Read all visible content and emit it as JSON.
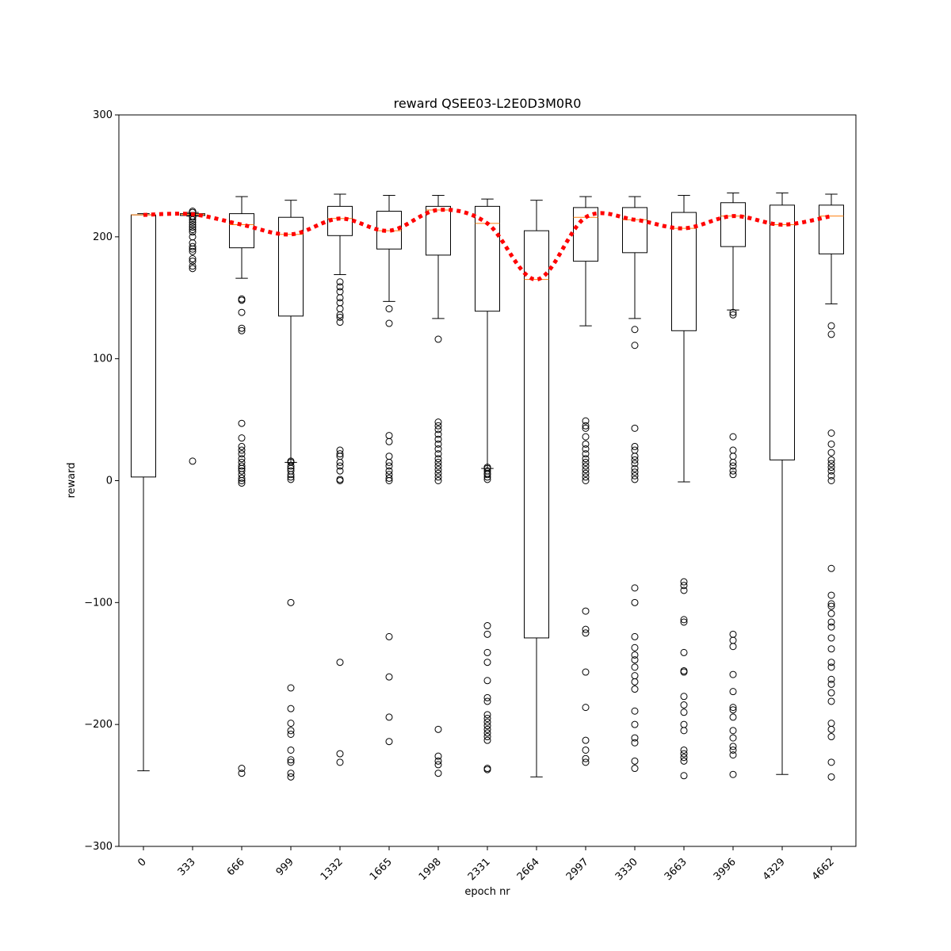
{
  "chart_data": {
    "type": "box",
    "title": "reward QSEE03-L2E0D3M0R0",
    "xlabel": "epoch nr",
    "ylabel": "reward",
    "ylim": [
      -300,
      300
    ],
    "yticks": [
      -300,
      -200,
      -100,
      0,
      100,
      200,
      300
    ],
    "categories": [
      "0",
      "333",
      "666",
      "999",
      "1332",
      "1665",
      "1998",
      "2331",
      "2664",
      "2997",
      "3330",
      "3663",
      "3996",
      "4329",
      "4662"
    ],
    "boxes": [
      {
        "q1": 3,
        "median": 218,
        "q3": 218,
        "whisker_low": -238,
        "whisker_high": 219,
        "outliers": []
      },
      {
        "q1": 217.5,
        "median": 218.5,
        "q3": 219,
        "whisker_low": 217,
        "whisker_high": 220,
        "outliers": [
          221,
          220,
          217,
          216,
          214,
          212,
          210,
          208,
          206,
          204,
          200,
          195,
          192,
          190,
          188,
          182,
          180,
          176,
          174,
          16
        ]
      },
      {
        "q1": 191,
        "median": 210,
        "q3": 219,
        "whisker_low": 166,
        "whisker_high": 233,
        "outliers": [
          149,
          148,
          138,
          125,
          123,
          47,
          35,
          28,
          25,
          22,
          18,
          15,
          12,
          10,
          8,
          5,
          2,
          0,
          -2,
          -236,
          -240
        ]
      },
      {
        "q1": 135,
        "median": 202,
        "q3": 216,
        "whisker_low": 15,
        "whisker_high": 230,
        "outliers": [
          16,
          15,
          12,
          10,
          8,
          5,
          3,
          1,
          -100,
          -170,
          -187,
          -199,
          -205,
          -208,
          -221,
          -229,
          -231,
          -240,
          -243
        ]
      },
      {
        "q1": 201,
        "median": 215,
        "q3": 225,
        "whisker_low": 169,
        "whisker_high": 235,
        "outliers": [
          163,
          159,
          155,
          150,
          146,
          141,
          136,
          134,
          130,
          25,
          22,
          20,
          15,
          12,
          8,
          1,
          0,
          -149,
          -224,
          -231
        ]
      },
      {
        "q1": 190,
        "median": 205,
        "q3": 221,
        "whisker_low": 147,
        "whisker_high": 234,
        "outliers": [
          141,
          129,
          37,
          32,
          20,
          15,
          12,
          8,
          5,
          2,
          0,
          -128,
          -161,
          -194,
          -214
        ]
      },
      {
        "q1": 185,
        "median": 222,
        "q3": 225,
        "whisker_low": 133,
        "whisker_high": 234,
        "outliers": [
          116,
          48,
          45,
          42,
          38,
          34,
          30,
          26,
          22,
          18,
          15,
          12,
          9,
          6,
          3,
          0,
          -204,
          -226,
          -230,
          -233,
          -240
        ]
      },
      {
        "q1": 139,
        "median": 211,
        "q3": 225,
        "whisker_low": 10,
        "whisker_high": 231,
        "outliers": [
          11,
          10,
          8,
          6,
          5,
          3,
          1,
          -119,
          -126,
          -141,
          -149,
          -164,
          -178,
          -181,
          -192,
          -195,
          -198,
          -201,
          -204,
          -207,
          -210,
          -213,
          -236,
          -237
        ]
      },
      {
        "q1": -129,
        "median": 165,
        "q3": 205,
        "whisker_low": -243,
        "whisker_high": 230,
        "outliers": []
      },
      {
        "q1": 180,
        "median": 216,
        "q3": 224,
        "whisker_low": 127,
        "whisker_high": 233,
        "outliers": [
          49,
          45,
          43,
          36,
          30,
          26,
          22,
          18,
          15,
          12,
          9,
          6,
          3,
          0,
          -107,
          -122,
          -125,
          -157,
          -186,
          -213,
          -221,
          -228,
          -231
        ]
      },
      {
        "q1": 187,
        "median": 214,
        "q3": 224,
        "whisker_low": 133,
        "whisker_high": 233,
        "outliers": [
          124,
          111,
          43,
          28,
          25,
          20,
          17,
          14,
          10,
          7,
          4,
          1,
          -88,
          -100,
          -128,
          -137,
          -143,
          -147,
          -153,
          -160,
          -165,
          -171,
          -189,
          -200,
          -211,
          -215,
          -230,
          -236
        ]
      },
      {
        "q1": 123,
        "median": 207,
        "q3": 220,
        "whisker_low": -1,
        "whisker_high": 234,
        "outliers": [
          -83,
          -86,
          -90,
          -114,
          -116,
          -141,
          -156,
          -157,
          -177,
          -184,
          -190,
          -200,
          -205,
          -221,
          -224,
          -227,
          -230,
          -242
        ]
      },
      {
        "q1": 192,
        "median": 217,
        "q3": 228,
        "whisker_low": 140,
        "whisker_high": 236,
        "outliers": [
          138,
          136,
          36,
          25,
          20,
          15,
          12,
          8,
          5,
          -126,
          -131,
          -136,
          -159,
          -173,
          -186,
          -188,
          -194,
          -205,
          -211,
          -218,
          -221,
          -225,
          -241
        ]
      },
      {
        "q1": 17,
        "median": 210,
        "q3": 226,
        "whisker_low": -241,
        "whisker_high": 236,
        "outliers": []
      },
      {
        "q1": 186,
        "median": 217,
        "q3": 226,
        "whisker_low": 145,
        "whisker_high": 235,
        "outliers": [
          127,
          120,
          39,
          30,
          23,
          17,
          14,
          11,
          8,
          4,
          0,
          -72,
          -94,
          -101,
          -103,
          -109,
          -116,
          -120,
          -129,
          -138,
          -149,
          -153,
          -163,
          -167,
          -174,
          -181,
          -199,
          -204,
          -210,
          -231,
          -243
        ]
      }
    ],
    "mean_line": {
      "style": "dotted",
      "color": "#ff0000",
      "values": [
        218,
        218.5,
        210,
        202,
        215,
        205,
        222,
        211,
        165,
        216,
        214,
        207,
        217,
        210,
        217
      ]
    },
    "colors": {
      "box": "#000000",
      "median": "#ff7f0e",
      "mean_line": "#ff0000"
    },
    "grid": false
  }
}
